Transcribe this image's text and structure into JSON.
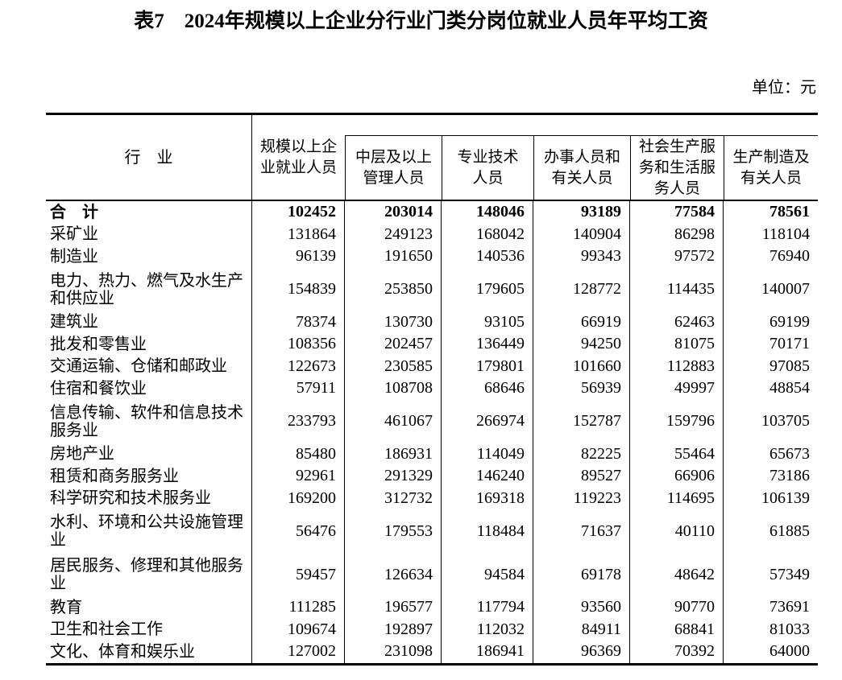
{
  "title": "表7　2024年规模以上企业分行业门类分岗位就业人员年平均工资",
  "unit_label": "单位：元",
  "table": {
    "industry_header": "行　业",
    "columns": [
      {
        "label": "规模以上企\n业就业人员"
      },
      {
        "label": "中层及以上\n管理人员"
      },
      {
        "label": "专业技术\n人员"
      },
      {
        "label": "办事人员和\n有关人员"
      },
      {
        "label": "社会生产服\n务和生活服\n务人员"
      },
      {
        "label": "生产制造及\n有关人员"
      }
    ],
    "rows": [
      {
        "industry": "合　计",
        "bold": true,
        "values": [
          102452,
          203014,
          148046,
          93189,
          77584,
          78561
        ]
      },
      {
        "industry": "采矿业",
        "values": [
          131864,
          249123,
          168042,
          140904,
          86298,
          118104
        ]
      },
      {
        "industry": "制造业",
        "values": [
          96139,
          191650,
          140536,
          99343,
          97572,
          76940
        ]
      },
      {
        "industry": "电力、热力、燃气及水生产\n和供应业",
        "values": [
          154839,
          253850,
          179605,
          128772,
          114435,
          140007
        ]
      },
      {
        "industry": "建筑业",
        "values": [
          78374,
          130730,
          93105,
          66919,
          62463,
          69199
        ]
      },
      {
        "industry": "批发和零售业",
        "values": [
          108356,
          202457,
          136449,
          94250,
          81075,
          70171
        ]
      },
      {
        "industry": "交通运输、仓储和邮政业",
        "values": [
          122673,
          230585,
          179801,
          101660,
          112883,
          97085
        ]
      },
      {
        "industry": "住宿和餐饮业",
        "values": [
          57911,
          108708,
          68646,
          56939,
          49997,
          48854
        ]
      },
      {
        "industry": "信息传输、软件和信息技术\n服务业",
        "values": [
          233793,
          461067,
          266974,
          152787,
          159796,
          103705
        ]
      },
      {
        "industry": "房地产业",
        "values": [
          85480,
          186931,
          114049,
          82225,
          55464,
          65673
        ]
      },
      {
        "industry": "租赁和商务服务业",
        "values": [
          92961,
          291329,
          146240,
          89527,
          66906,
          73186
        ]
      },
      {
        "industry": "科学研究和技术服务业",
        "values": [
          169200,
          312732,
          169318,
          119223,
          114695,
          106139
        ]
      },
      {
        "industry": "水利、环境和公共设施管理\n业",
        "values": [
          56476,
          179553,
          118484,
          71637,
          40110,
          61885
        ]
      },
      {
        "industry": "居民服务、修理和其他服务\n业",
        "values": [
          59457,
          126634,
          94584,
          69178,
          48642,
          57349
        ]
      },
      {
        "industry": "教育",
        "values": [
          111285,
          196577,
          117794,
          93560,
          90770,
          73691
        ]
      },
      {
        "industry": "卫生和社会工作",
        "values": [
          109674,
          192897,
          112032,
          84911,
          68841,
          81033
        ]
      },
      {
        "industry": "文化、体育和娱乐业",
        "values": [
          127002,
          231098,
          186941,
          96369,
          70392,
          64000
        ]
      }
    ]
  }
}
